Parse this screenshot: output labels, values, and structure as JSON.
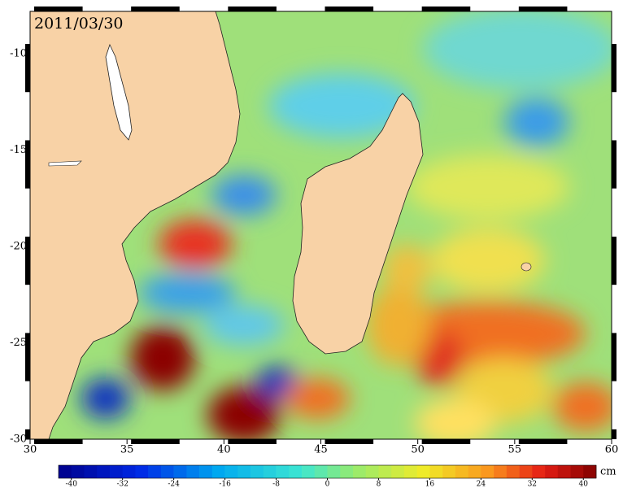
{
  "title": "2011/03/30",
  "map": {
    "xlim": [
      30,
      60
    ],
    "ylim": [
      -30,
      -7.8
    ],
    "xticks": [
      30,
      35,
      40,
      45,
      50,
      55,
      60
    ],
    "yticks": [
      -10,
      -15,
      -20,
      -25,
      -30
    ]
  },
  "colorbar": {
    "lim": [
      -42,
      42
    ],
    "ticks": [
      -40,
      -32,
      -24,
      -16,
      -8,
      0,
      8,
      16,
      24,
      32,
      40
    ],
    "unit": "cm"
  }
}
